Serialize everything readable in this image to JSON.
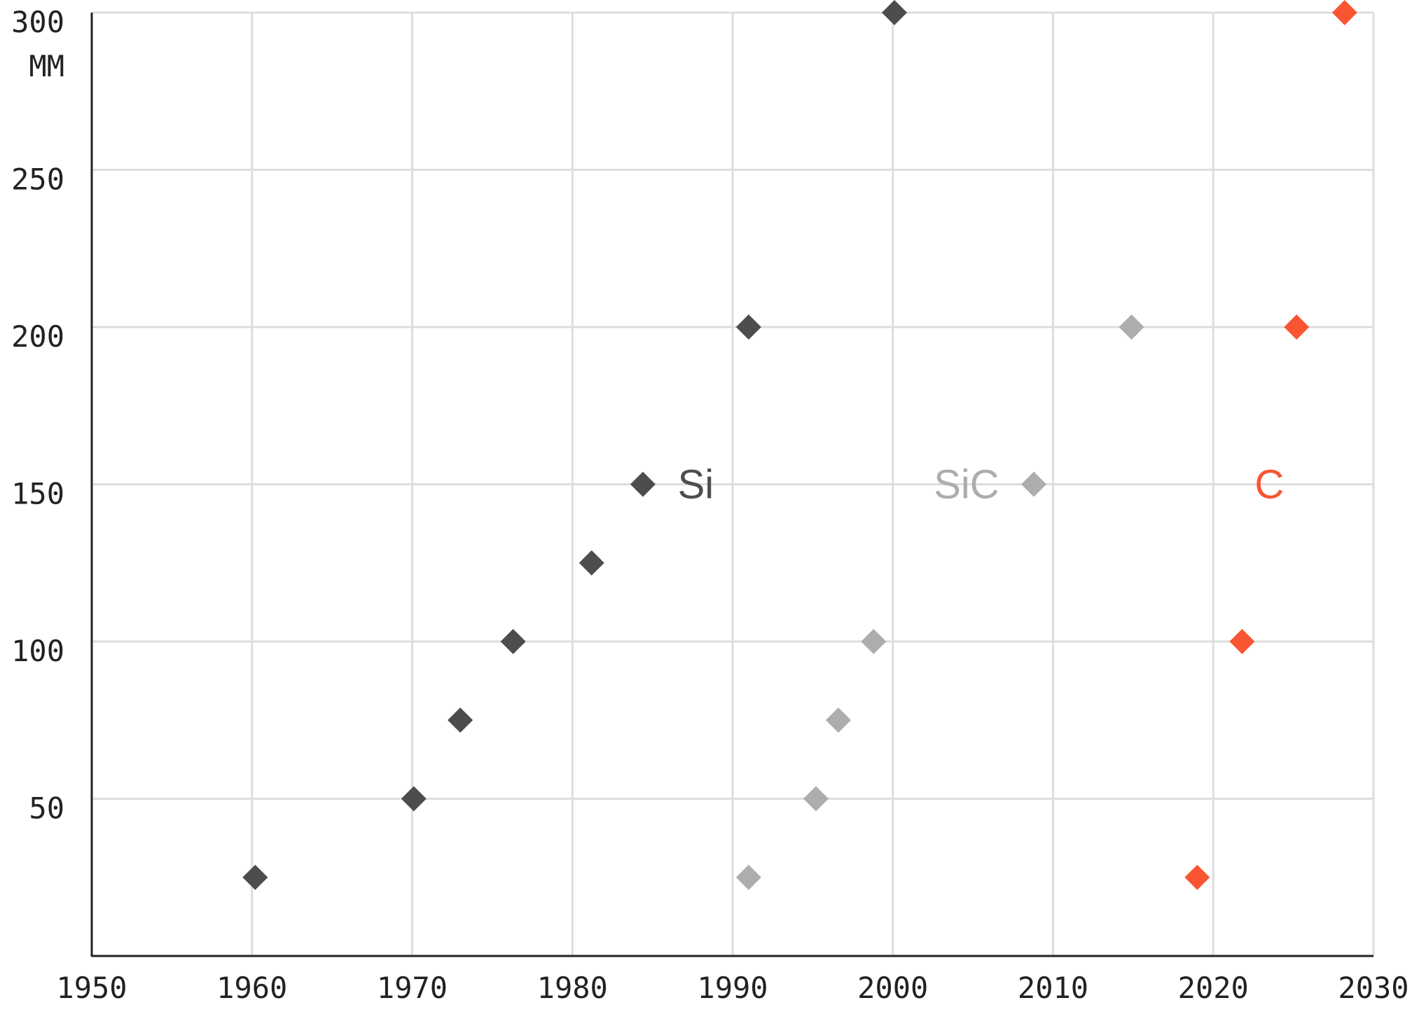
{
  "chart_data": {
    "type": "scatter",
    "title": "",
    "xlabel": "",
    "ylabel": "MM",
    "xlim": [
      1950,
      2030
    ],
    "ylim": [
      0,
      300
    ],
    "x_ticks": [
      1950,
      1960,
      1970,
      1980,
      1990,
      2000,
      2010,
      2020,
      2030
    ],
    "y_ticks": [
      50,
      100,
      150,
      200,
      250,
      300
    ],
    "grid": true,
    "marker": "diamond",
    "series": [
      {
        "name": "Si",
        "color": "#4d4d4d",
        "points": [
          {
            "x": 1960.2,
            "y": 25
          },
          {
            "x": 1970.1,
            "y": 50
          },
          {
            "x": 1973.0,
            "y": 75
          },
          {
            "x": 1976.3,
            "y": 100
          },
          {
            "x": 1981.2,
            "y": 125
          },
          {
            "x": 1984.4,
            "y": 150
          },
          {
            "x": 1991.0,
            "y": 200
          },
          {
            "x": 2000.1,
            "y": 300
          }
        ],
        "label_at": {
          "x": 1987.7,
          "y": 150
        }
      },
      {
        "name": "SiC",
        "color": "#adadad",
        "points": [
          {
            "x": 1991.0,
            "y": 25
          },
          {
            "x": 1995.2,
            "y": 50
          },
          {
            "x": 1996.6,
            "y": 75
          },
          {
            "x": 1998.8,
            "y": 100
          },
          {
            "x": 2008.8,
            "y": 150
          },
          {
            "x": 2014.9,
            "y": 200
          }
        ],
        "label_at": {
          "x": 2004.6,
          "y": 150
        }
      },
      {
        "name": "C",
        "color": "#fa5533",
        "points": [
          {
            "x": 2019.0,
            "y": 25
          },
          {
            "x": 2021.8,
            "y": 100
          },
          {
            "x": 2025.2,
            "y": 200
          },
          {
            "x": 2028.2,
            "y": 300
          }
        ],
        "label_at": {
          "x": 2023.5,
          "y": 150
        }
      }
    ]
  }
}
